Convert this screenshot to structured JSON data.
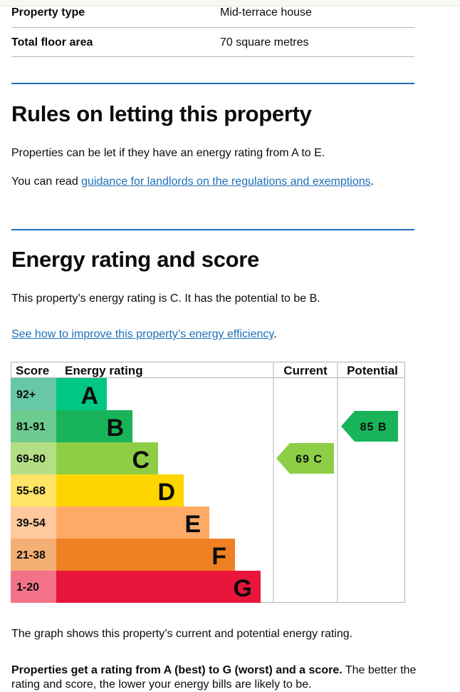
{
  "summary": {
    "rows": [
      {
        "label": "Property type",
        "value": "Mid-terrace house"
      },
      {
        "label": "Total floor area",
        "value": "70 square metres"
      }
    ]
  },
  "letting": {
    "heading": "Rules on letting this property",
    "para1": "Properties can be let if they have an energy rating from A to E.",
    "para2_prefix": "You can read ",
    "para2_link": "guidance for landlords on the regulations and exemptions",
    "para2_suffix": "."
  },
  "energy": {
    "heading": "Energy rating and score",
    "para1": "This property’s energy rating is C. It has the potential to be B.",
    "link": "See how to improve this property’s energy efficiency",
    "link_suffix": ".",
    "graph_note": "The graph shows this property’s current and potential energy rating.",
    "bottom_bold": "Properties get a rating from A (best) to G (worst) and a score.",
    "bottom_rest": " The better the rating and score, the lower your energy bills are likely to be."
  },
  "chart_data": {
    "type": "bar",
    "headers": {
      "score": "Score",
      "rating": "Energy rating",
      "current": "Current",
      "potential": "Potential"
    },
    "bands": [
      {
        "score": "92+",
        "letter": "A",
        "color": "#00c781",
        "light": "#66c8a4"
      },
      {
        "score": "81-91",
        "letter": "B",
        "color": "#19b459",
        "light": "#6ecb8f"
      },
      {
        "score": "69-80",
        "letter": "C",
        "color": "#8dce46",
        "light": "#b4de84"
      },
      {
        "score": "55-68",
        "letter": "D",
        "color": "#ffd500",
        "light": "#ffe466"
      },
      {
        "score": "39-54",
        "letter": "E",
        "color": "#fcaa65",
        "light": "#fdc99d"
      },
      {
        "score": "21-38",
        "letter": "F",
        "color": "#ef8023",
        "light": "#f5ae74"
      },
      {
        "score": "1-20",
        "letter": "G",
        "color": "#e9153b",
        "light": "#f27388"
      }
    ],
    "current": {
      "score": 69,
      "letter": "C",
      "label": "69 C",
      "color": "#8dce46"
    },
    "potential": {
      "score": 85,
      "letter": "B",
      "label": "85 B",
      "color": "#19b459"
    }
  }
}
